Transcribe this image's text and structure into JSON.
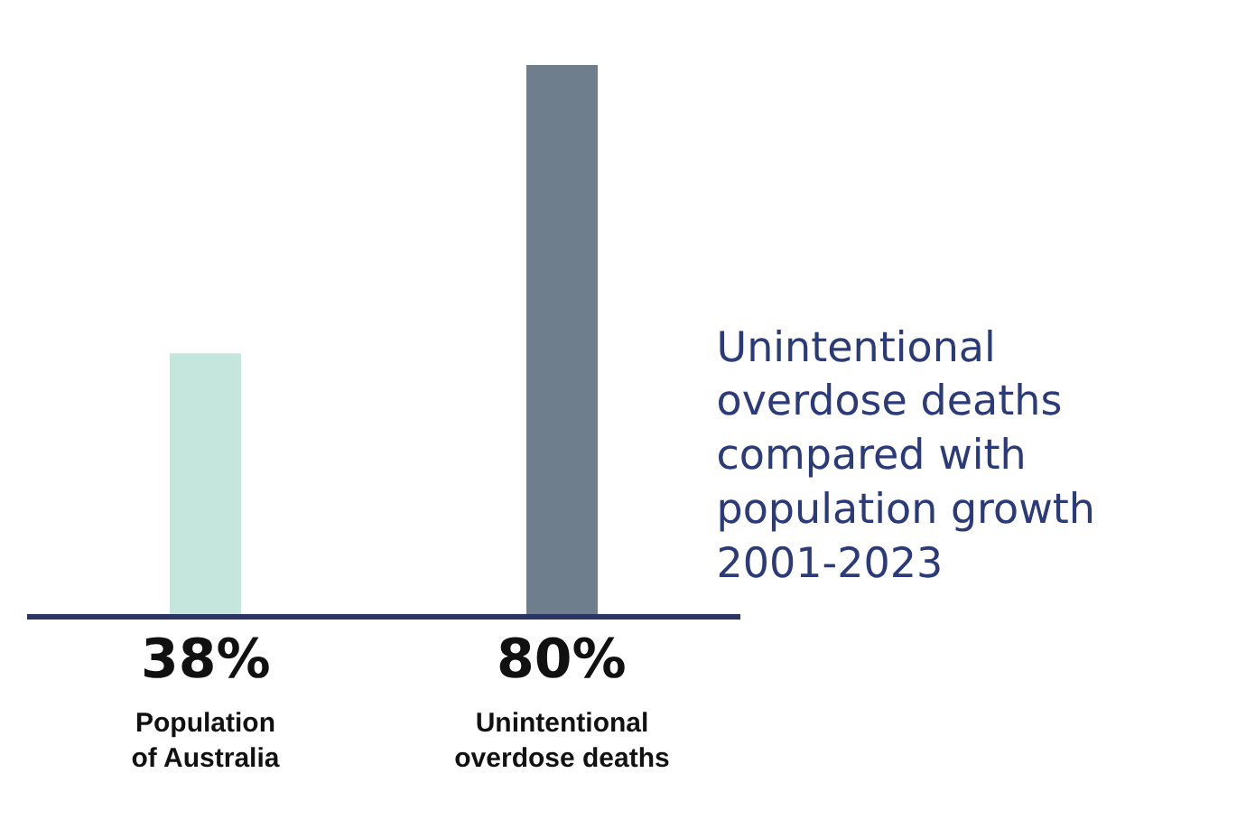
{
  "chart_data": {
    "type": "bar",
    "title": "Unintentional overdose deaths compared with population growth 2001-2023",
    "categories": [
      "Population of Australia",
      "Unintentional overdose deaths"
    ],
    "values": [
      38,
      80
    ],
    "colors": [
      "#c5e6dc",
      "#6f7e8c"
    ],
    "value_labels": [
      "38%",
      "80%"
    ],
    "tick_labels": "x"
  }
}
